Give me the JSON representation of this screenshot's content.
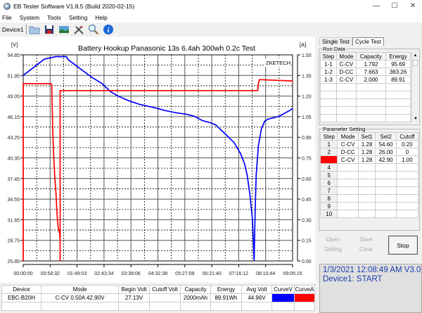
{
  "window": {
    "title": "EB Tester Software V1.8.5 (Build 2020-02-15)",
    "controls": [
      "minimize",
      "maximize",
      "close"
    ]
  },
  "menu": [
    "File",
    "System",
    "Tools",
    "Setting",
    "Help"
  ],
  "toolbar": {
    "device_label": "Device1",
    "icons": [
      "open-folder-icon",
      "save-disk-icon",
      "image-icon",
      "tools-icon",
      "search-icon",
      "info-icon"
    ]
  },
  "chart_data": {
    "type": "line",
    "title": "Battery Hookup Panasonic 13s 6.4ah 300wh 0.2c Test",
    "watermark": "ZKETECH",
    "ylabel_left": "[V]",
    "ylabel_right": "[A]",
    "y_left_ticks": [
      "54.85",
      "51.95",
      "49.05",
      "46.15",
      "43.25",
      "40.35",
      "37.45",
      "34.55",
      "31.65",
      "28.75",
      "25.85"
    ],
    "y_right_ticks": [
      "1.50",
      "1.35",
      "1.20",
      "1.05",
      "0.90",
      "0.75",
      "0.60",
      "0.45",
      "0.30",
      "0.15",
      "0.00"
    ],
    "x_ticks": [
      "00:00:00",
      "00:54:32",
      "01:49:03",
      "02:43:34",
      "03:38:06",
      "04:32:38",
      "05:27:09",
      "06:21:40",
      "07:16:12",
      "08:10:44",
      "09:05:15"
    ],
    "ylim_left": [
      25.85,
      54.85
    ],
    "ylim_right": [
      0.0,
      1.5
    ],
    "grid": true,
    "series": [
      {
        "name": "Voltage",
        "axis": "left",
        "color": "#0000ff",
        "points": [
          [
            0,
            51.95
          ],
          [
            40,
            54.25
          ],
          [
            62,
            54.6
          ],
          [
            82,
            54.6
          ],
          [
            85,
            54.2
          ],
          [
            110,
            52.8
          ],
          [
            130,
            51.7
          ],
          [
            150,
            50.8
          ],
          [
            165,
            49.7
          ],
          [
            180,
            49.05
          ],
          [
            200,
            48.4
          ],
          [
            220,
            47.9
          ],
          [
            250,
            47.4
          ],
          [
            270,
            47.0
          ],
          [
            290,
            46.7
          ],
          [
            310,
            46.5
          ],
          [
            325,
            46.2
          ],
          [
            340,
            45.6
          ],
          [
            355,
            45.3
          ],
          [
            365,
            45.0
          ],
          [
            375,
            44.3
          ],
          [
            390,
            43.25
          ],
          [
            400,
            42.5
          ],
          [
            412,
            41.0
          ],
          [
            420,
            39.5
          ],
          [
            425,
            37.9
          ],
          [
            430,
            35.2
          ],
          [
            435,
            31.6
          ],
          [
            437,
            27.8
          ],
          [
            438,
            25.9
          ],
          [
            440,
            33.0
          ],
          [
            442,
            38.0
          ],
          [
            446,
            42.0
          ],
          [
            452,
            44.5
          ],
          [
            458,
            45.5
          ],
          [
            464,
            45.8
          ],
          [
            475,
            46.0
          ],
          [
            485,
            46.2
          ],
          [
            495,
            46.6
          ],
          [
            505,
            47.0
          ],
          [
            511,
            47.3
          ]
        ]
      },
      {
        "name": "Current",
        "axis": "right",
        "color": "#ff0000",
        "points": [
          [
            0,
            0.0
          ],
          [
            0,
            1.29
          ],
          [
            53,
            1.29
          ],
          [
            54,
            1.28
          ],
          [
            56,
            0.95
          ],
          [
            58,
            0.75
          ],
          [
            60,
            0.6
          ],
          [
            62,
            0.5
          ],
          [
            64,
            0.35
          ],
          [
            66,
            0.25
          ],
          [
            69,
            0.2
          ],
          [
            70,
            0.15
          ],
          [
            70,
            0.0
          ],
          [
            70,
            1.24
          ],
          [
            445,
            1.24
          ],
          [
            446,
            1.29
          ],
          [
            448,
            1.32
          ],
          [
            511,
            1.31
          ]
        ]
      }
    ]
  },
  "right_panel": {
    "tabs": [
      "Single Test",
      "Cycle Test"
    ],
    "active_tab": "Cycle Test",
    "run_data": {
      "title": "Run Data",
      "columns": [
        "Step",
        "Mode",
        "Capacity",
        "Energy"
      ],
      "rows": [
        [
          "1-1",
          "C-CV",
          "1.792",
          "95.69"
        ],
        [
          "1-2",
          "D-CC",
          "7.663",
          "363.26"
        ],
        [
          "1-3",
          "C-CV",
          "2.000",
          "89.91"
        ]
      ]
    },
    "parameter_setting": {
      "title": "Parameter Setting",
      "columns": [
        "Step",
        "Mode",
        "Set1",
        "Set2",
        "Cutoff"
      ],
      "rows": [
        [
          "1",
          "C-CV",
          "1.28",
          "54.60",
          "0.20"
        ],
        [
          "2",
          "D-CC",
          "1.28",
          "26.00",
          "0"
        ],
        [
          "3",
          "C-CV",
          "1.28",
          "42.90",
          "1.00"
        ],
        [
          "4",
          "",
          "",
          "",
          ""
        ],
        [
          "5",
          "",
          "",
          "",
          ""
        ],
        [
          "6",
          "",
          "",
          "",
          ""
        ],
        [
          "7",
          "",
          "",
          "",
          ""
        ],
        [
          "8",
          "",
          "",
          "",
          ""
        ],
        [
          "9",
          "",
          "",
          "",
          ""
        ],
        [
          "10",
          "",
          "",
          "",
          ""
        ]
      ],
      "active_step_color": "#ff0000"
    },
    "buttons": {
      "open": "Open",
      "save": "Save",
      "setting": "Setting",
      "clear": "Clear",
      "stop": "Stop"
    },
    "status": {
      "line1": "1/3/2021 12:08:49 AM  V3.0",
      "line2": "Device1: START"
    }
  },
  "bottom_table": {
    "columns": [
      "Device",
      "Mode",
      "Begin Volt",
      "Cutoff Volt",
      "Capacity",
      "Energy",
      "Avg Volt",
      "CurveV",
      "CurveA"
    ],
    "row": [
      "EBC-B20H",
      "C-CV  0.50A  42.90V",
      "27.13V",
      "",
      "2000mAh",
      "89.91Wh",
      "44.96V",
      "",
      ""
    ],
    "curve_colors": {
      "v": "#0000ff",
      "a": "#ff0000"
    }
  }
}
